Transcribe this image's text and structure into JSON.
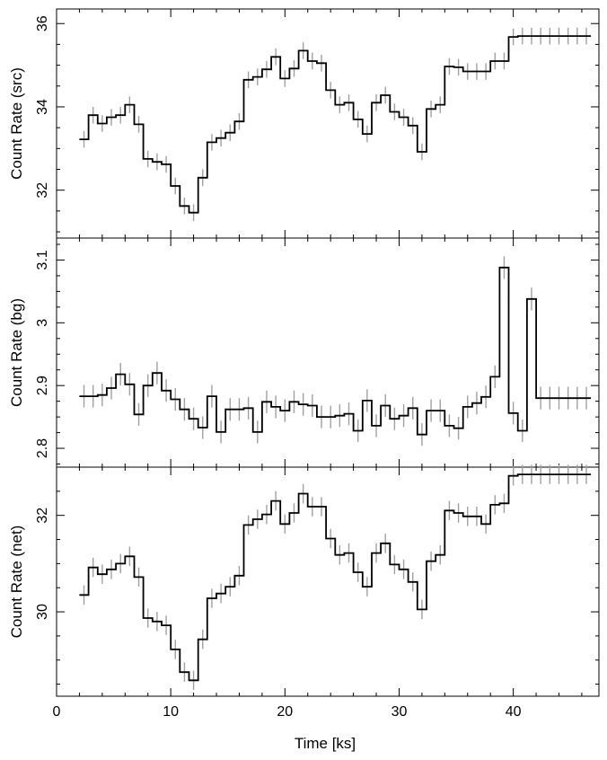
{
  "chart_data": [
    {
      "type": "line",
      "title": "",
      "xlabel": "",
      "ylabel": "Count Rate (src)",
      "xlim": [
        0,
        47.5
      ],
      "ylim": [
        30.85,
        36.35
      ],
      "yticks": [
        32,
        34,
        36
      ],
      "ytick_labels": [
        "32",
        "34",
        "36"
      ],
      "xticks": [
        0,
        10,
        20,
        30,
        40
      ],
      "xtick_labels": [],
      "bin_width": 0.8,
      "err_color": "#a0a0a0",
      "line_color": "#000000",
      "series": [
        {
          "x": [
            2.4,
            3.2,
            4.0,
            4.8,
            5.6,
            6.4,
            7.2,
            8.0,
            8.8,
            9.6,
            10.4,
            11.2,
            12.0,
            12.8,
            13.6,
            14.4,
            15.2,
            16.0,
            16.8,
            17.6,
            18.4,
            19.2,
            20.0,
            20.8,
            21.6,
            22.4,
            23.2,
            24.0,
            24.8,
            25.6,
            26.4,
            27.2,
            28.0,
            28.8,
            29.6,
            30.4,
            31.2,
            32.0,
            32.8,
            33.6,
            34.4,
            35.2,
            36.0,
            36.8,
            37.6,
            38.4,
            39.2,
            40.0,
            40.8,
            41.6,
            42.4,
            43.2,
            44.0,
            44.8,
            45.6,
            46.4
          ],
          "y": [
            33.22,
            33.8,
            33.6,
            33.75,
            33.8,
            34.05,
            33.58,
            32.75,
            32.68,
            32.62,
            32.1,
            31.62,
            31.46,
            32.3,
            33.15,
            33.25,
            33.38,
            33.65,
            34.65,
            34.72,
            34.9,
            35.2,
            34.68,
            34.92,
            35.35,
            35.1,
            35.05,
            34.4,
            34.05,
            34.1,
            33.7,
            33.35,
            34.1,
            34.28,
            33.88,
            33.75,
            33.55,
            32.92,
            33.95,
            34.05,
            34.97,
            34.95,
            34.85,
            34.85,
            34.85,
            35.1,
            35.1,
            35.68,
            35.7,
            35.7,
            35.7,
            35.7,
            35.7,
            35.7,
            35.7,
            35.7
          ],
          "err": 0.2
        }
      ]
    },
    {
      "type": "line",
      "title": "",
      "xlabel": "",
      "ylabel": "Count Rate (bg)",
      "xlim": [
        0,
        47.5
      ],
      "ylim": [
        2.77,
        3.135
      ],
      "yticks": [
        2.8,
        2.9,
        3.0,
        3.1
      ],
      "ytick_labels": [
        "2.8",
        "2.9",
        "3",
        "3.1"
      ],
      "xticks": [
        0,
        10,
        20,
        30,
        40
      ],
      "xtick_labels": [],
      "bin_width": 0.8,
      "err_color": "#a0a0a0",
      "line_color": "#000000",
      "series": [
        {
          "x": [
            2.4,
            3.2,
            4.0,
            4.8,
            5.6,
            6.4,
            7.2,
            8.0,
            8.8,
            9.6,
            10.4,
            11.2,
            12.0,
            12.8,
            13.6,
            14.4,
            15.2,
            16.0,
            16.8,
            17.6,
            18.4,
            19.2,
            20.0,
            20.8,
            21.6,
            22.4,
            23.2,
            24.0,
            24.8,
            25.6,
            26.4,
            27.2,
            28.0,
            28.8,
            29.6,
            30.4,
            31.2,
            32.0,
            32.8,
            33.6,
            34.4,
            35.2,
            36.0,
            36.8,
            37.6,
            38.4,
            39.2,
            40.0,
            40.8,
            41.6,
            42.4,
            43.2,
            44.0,
            44.8,
            45.6,
            46.4
          ],
          "y": [
            2.883,
            2.883,
            2.885,
            2.896,
            2.918,
            2.902,
            2.854,
            2.9,
            2.92,
            2.892,
            2.878,
            2.862,
            2.847,
            2.833,
            2.883,
            2.826,
            2.862,
            2.862,
            2.864,
            2.826,
            2.874,
            2.866,
            2.86,
            2.874,
            2.87,
            2.868,
            2.85,
            2.85,
            2.852,
            2.855,
            2.828,
            2.876,
            2.836,
            2.868,
            2.847,
            2.852,
            2.864,
            2.822,
            2.86,
            2.86,
            2.836,
            2.832,
            2.866,
            2.872,
            2.882,
            2.914,
            3.088,
            2.856,
            2.828,
            3.038,
            2.88,
            2.88,
            2.88,
            2.88,
            2.88,
            2.88
          ],
          "err": 0.018
        }
      ]
    },
    {
      "type": "line",
      "title": "",
      "xlabel": "Time [ks]",
      "ylabel": "Count Rate (net)",
      "xlim": [
        0,
        47.5
      ],
      "ylim": [
        28.25,
        33.0
      ],
      "yticks": [
        30,
        32
      ],
      "ytick_labels": [
        "30",
        "32"
      ],
      "xticks": [
        0,
        10,
        20,
        30,
        40
      ],
      "xtick_labels": [
        "0",
        "10",
        "20",
        "30",
        "40"
      ],
      "bin_width": 0.8,
      "err_color": "#a0a0a0",
      "line_color": "#000000",
      "series": [
        {
          "x": [
            2.4,
            3.2,
            4.0,
            4.8,
            5.6,
            6.4,
            7.2,
            8.0,
            8.8,
            9.6,
            10.4,
            11.2,
            12.0,
            12.8,
            13.6,
            14.4,
            15.2,
            16.0,
            16.8,
            17.6,
            18.4,
            19.2,
            20.0,
            20.8,
            21.6,
            22.4,
            23.2,
            24.0,
            24.8,
            25.6,
            26.4,
            27.2,
            28.0,
            28.8,
            29.6,
            30.4,
            31.2,
            32.0,
            32.8,
            33.6,
            34.4,
            35.2,
            36.0,
            36.8,
            37.6,
            38.4,
            39.2,
            40.0,
            40.8,
            41.6,
            42.4,
            43.2,
            44.0,
            44.8,
            45.6,
            46.4
          ],
          "y": [
            30.35,
            30.92,
            30.78,
            30.88,
            31.0,
            31.15,
            30.72,
            29.87,
            29.8,
            29.72,
            29.22,
            28.75,
            28.58,
            29.43,
            30.28,
            30.38,
            30.52,
            30.75,
            31.8,
            31.92,
            32.02,
            32.3,
            31.82,
            32.05,
            32.45,
            32.18,
            32.18,
            31.52,
            31.18,
            31.22,
            30.82,
            30.52,
            31.22,
            31.42,
            30.98,
            30.88,
            30.62,
            30.05,
            31.05,
            31.18,
            32.1,
            32.05,
            31.98,
            31.98,
            31.82,
            32.22,
            32.25,
            32.82,
            32.85,
            32.85,
            32.85,
            32.85,
            32.85,
            32.85,
            32.85,
            32.85
          ],
          "err": 0.2
        }
      ]
    }
  ]
}
